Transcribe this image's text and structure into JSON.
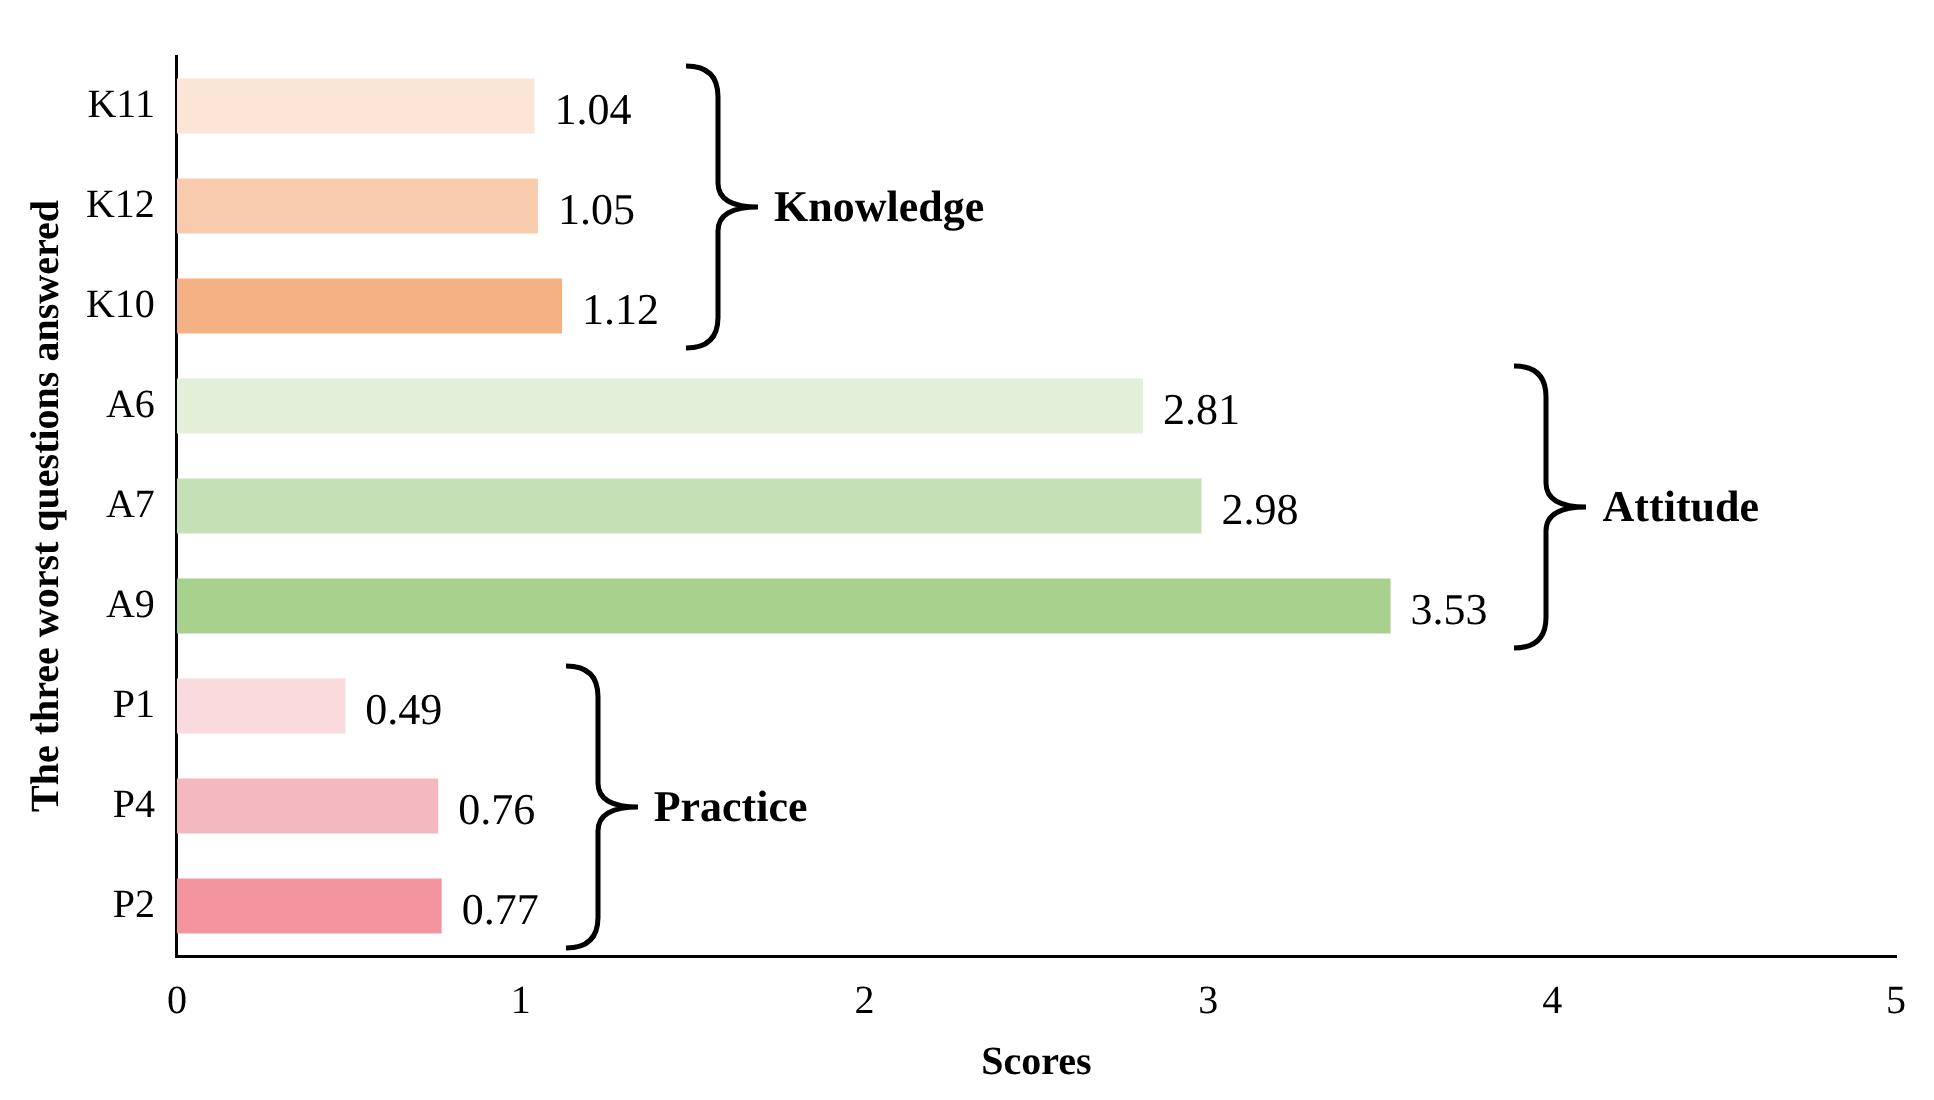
{
  "chart_data": {
    "type": "bar",
    "orientation": "horizontal",
    "xlabel": "Scores",
    "ylabel": "The three worst questions answered",
    "categories": [
      "K11",
      "K12",
      "K10",
      "A6",
      "A7",
      "A9",
      "P1",
      "P4",
      "P2"
    ],
    "values": [
      1.04,
      1.05,
      1.12,
      2.81,
      2.98,
      3.53,
      0.49,
      0.76,
      0.77
    ],
    "colors": [
      "#fbe5d6",
      "#f8cbad",
      "#f4b183",
      "#e2f0d9",
      "#c5e0b4",
      "#a9d18e",
      "#fadadd",
      "#f4b8c0",
      "#f3949e"
    ],
    "xlim": [
      0,
      5
    ],
    "xticks": [
      0,
      1,
      2,
      3,
      4,
      5
    ],
    "grid": false,
    "legend": false,
    "data_labels": true,
    "annotations": [
      "Knowledge",
      "Attitude",
      "Practice"
    ]
  }
}
